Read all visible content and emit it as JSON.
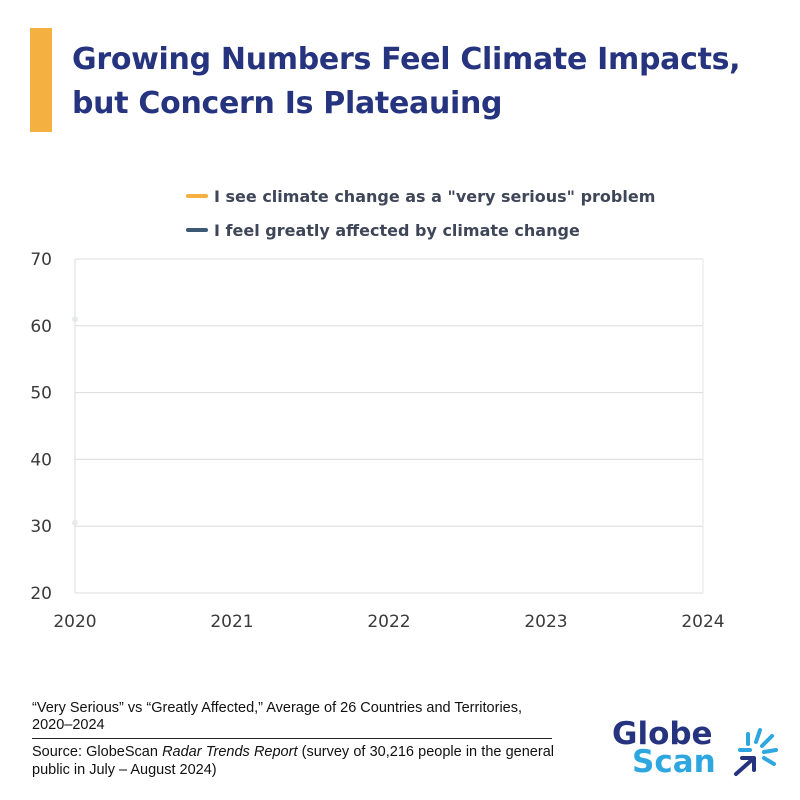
{
  "header": {
    "title_line1": "Growing Numbers Feel Climate Impacts,",
    "title_line2": "but Concern Is Plateauing",
    "accent_color": "#F4B040",
    "title_color": "#26347F"
  },
  "chart_data": {
    "type": "line",
    "title": "Growing Numbers Feel Climate Impacts, but Concern Is Plateauing",
    "xlabel": "",
    "ylabel": "",
    "x": [
      "2020",
      "2021",
      "2022",
      "2023",
      "2024"
    ],
    "xlim": [
      2020,
      2024
    ],
    "ylim": [
      20,
      70
    ],
    "y_ticks": [
      20,
      30,
      40,
      50,
      60,
      70
    ],
    "grid": true,
    "legend_position": "top",
    "series": [
      {
        "name": "I see climate change as a \"very serious\" problem",
        "color": "#F4B040",
        "points": [
          {
            "x": 2020,
            "y": 61
          }
        ]
      },
      {
        "name": "I feel greatly affected by climate change",
        "color": "#3C5A75",
        "points": [
          {
            "x": 2020,
            "y": 30.5
          }
        ]
      }
    ]
  },
  "footer": {
    "footnote": "“Very Serious” vs “Greatly Affected,” Average of 26 Countries and Territories, 2020–2024",
    "source_prefix": "Source: GlobeScan ",
    "source_italic": "Radar Trends Report",
    "source_suffix": " (survey of 30,216 people in the general public in July – August 2024)",
    "logo_word1": "Globe",
    "logo_word2": "Scan"
  }
}
